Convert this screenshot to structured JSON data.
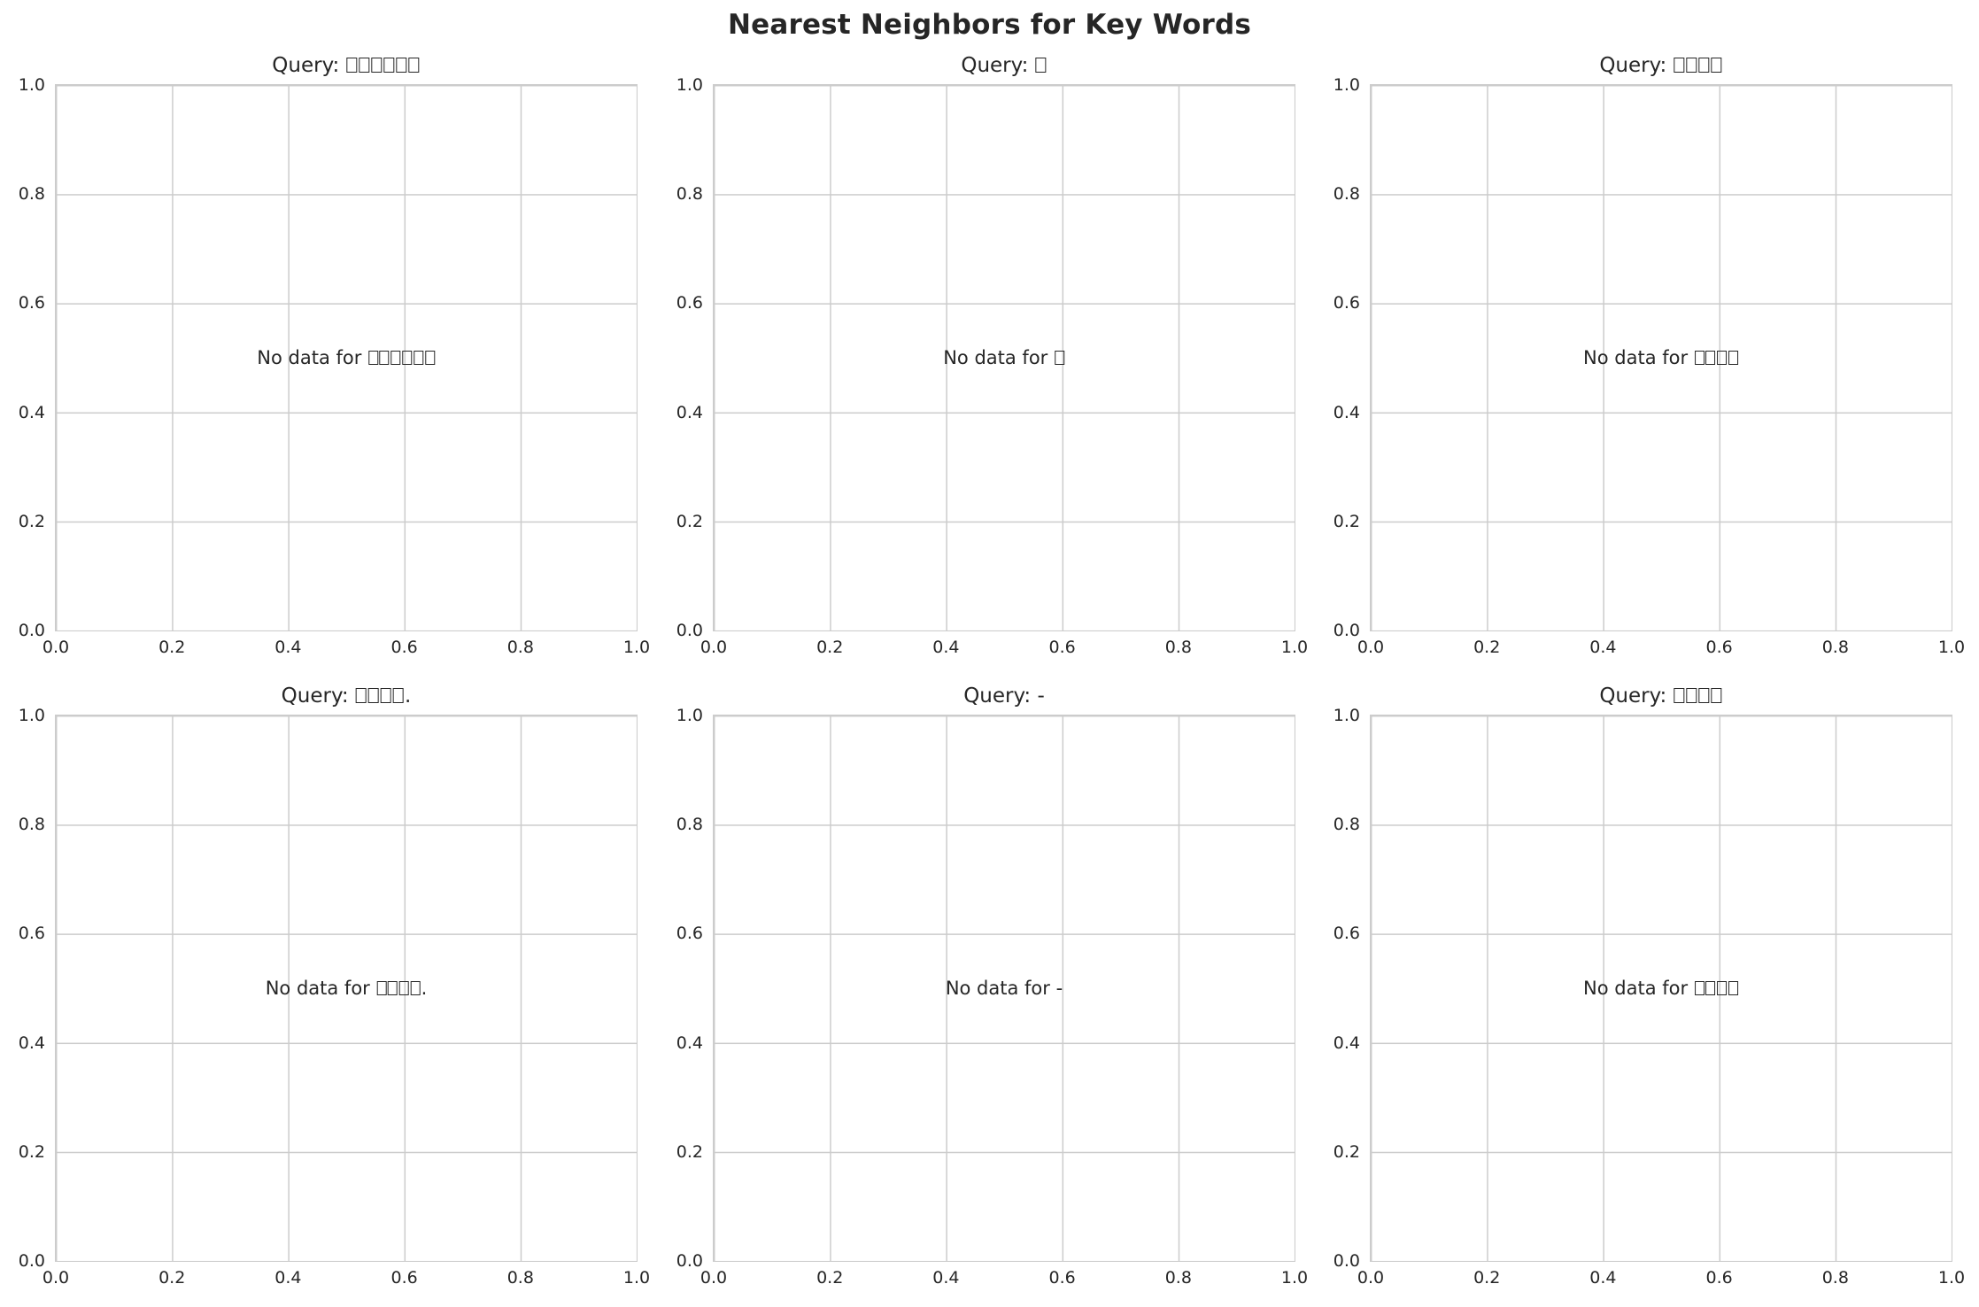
{
  "figure": {
    "title": "Nearest Neighbors for Key Words"
  },
  "axes": {
    "x_tick_labels": [
      "0.0",
      "0.2",
      "0.4",
      "0.6",
      "0.8",
      "1.0"
    ],
    "y_tick_labels": [
      "1.0",
      "0.8",
      "0.6",
      "0.4",
      "0.2",
      "0.0"
    ]
  },
  "subplots": [
    {
      "title": "Query: □□□□□□",
      "no_data": "No data for □□□□□□"
    },
    {
      "title": "Query: □",
      "no_data": "No data for □"
    },
    {
      "title": "Query: □□□□",
      "no_data": "No data for □□□□"
    },
    {
      "title": "Query: □□□□.",
      "no_data": "No data for □□□□."
    },
    {
      "title": "Query: -",
      "no_data": "No data for -"
    },
    {
      "title": "Query: □□□□",
      "no_data": "No data for □□□□"
    }
  ],
  "colors": {
    "text": "#262626",
    "grid": "#cccccc",
    "spine": "#cccccc",
    "background": "#ffffff"
  },
  "chart_data": [
    {
      "type": "scatter",
      "title": "Query: □□□□□□",
      "annotation": "No data for □□□□□□",
      "x": [],
      "y": [],
      "xlim": [
        0.0,
        1.0
      ],
      "ylim": [
        0.0,
        1.0
      ],
      "xticks": [
        0.0,
        0.2,
        0.4,
        0.6,
        0.8,
        1.0
      ],
      "yticks": [
        0.0,
        0.2,
        0.4,
        0.6,
        0.8,
        1.0
      ],
      "grid": true,
      "legend": false
    },
    {
      "type": "scatter",
      "title": "Query: □",
      "annotation": "No data for □",
      "x": [],
      "y": [],
      "xlim": [
        0.0,
        1.0
      ],
      "ylim": [
        0.0,
        1.0
      ],
      "xticks": [
        0.0,
        0.2,
        0.4,
        0.6,
        0.8,
        1.0
      ],
      "yticks": [
        0.0,
        0.2,
        0.4,
        0.6,
        0.8,
        1.0
      ],
      "grid": true,
      "legend": false
    },
    {
      "type": "scatter",
      "title": "Query: □□□□",
      "annotation": "No data for □□□□",
      "x": [],
      "y": [],
      "xlim": [
        0.0,
        1.0
      ],
      "ylim": [
        0.0,
        1.0
      ],
      "xticks": [
        0.0,
        0.2,
        0.4,
        0.6,
        0.8,
        1.0
      ],
      "yticks": [
        0.0,
        0.2,
        0.4,
        0.6,
        0.8,
        1.0
      ],
      "grid": true,
      "legend": false
    },
    {
      "type": "scatter",
      "title": "Query: □□□□.",
      "annotation": "No data for □□□□.",
      "x": [],
      "y": [],
      "xlim": [
        0.0,
        1.0
      ],
      "ylim": [
        0.0,
        1.0
      ],
      "xticks": [
        0.0,
        0.2,
        0.4,
        0.6,
        0.8,
        1.0
      ],
      "yticks": [
        0.0,
        0.2,
        0.4,
        0.6,
        0.8,
        1.0
      ],
      "grid": true,
      "legend": false
    },
    {
      "type": "scatter",
      "title": "Query: -",
      "annotation": "No data for -",
      "x": [],
      "y": [],
      "xlim": [
        0.0,
        1.0
      ],
      "ylim": [
        0.0,
        1.0
      ],
      "xticks": [
        0.0,
        0.2,
        0.4,
        0.6,
        0.8,
        1.0
      ],
      "yticks": [
        0.0,
        0.2,
        0.4,
        0.6,
        0.8,
        1.0
      ],
      "grid": true,
      "legend": false
    },
    {
      "type": "scatter",
      "title": "Query: □□□□",
      "annotation": "No data for □□□□",
      "x": [],
      "y": [],
      "xlim": [
        0.0,
        1.0
      ],
      "ylim": [
        0.0,
        1.0
      ],
      "xticks": [
        0.0,
        0.2,
        0.4,
        0.6,
        0.8,
        1.0
      ],
      "yticks": [
        0.0,
        0.2,
        0.4,
        0.6,
        0.8,
        1.0
      ],
      "grid": true,
      "legend": false
    }
  ]
}
